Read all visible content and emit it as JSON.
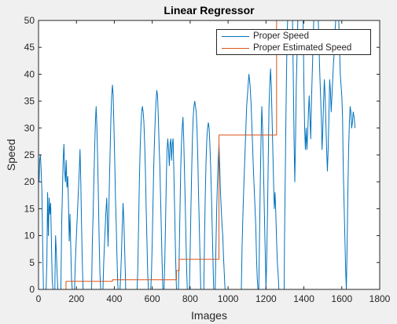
{
  "chart_data": {
    "type": "line",
    "title": "Linear Regressor",
    "xlabel": "Images",
    "ylabel": "Speed",
    "xlim": [
      0,
      1800
    ],
    "ylim": [
      0,
      50
    ],
    "x_ticks": [
      0,
      200,
      400,
      600,
      800,
      1000,
      1200,
      1400,
      1600,
      1800
    ],
    "y_ticks": [
      0,
      5,
      10,
      15,
      20,
      25,
      30,
      35,
      40,
      45,
      50
    ],
    "grid": false,
    "legend_position": "top-right",
    "series": [
      {
        "name": "Proper Speed",
        "color": "#0072bd",
        "points": [
          [
            0,
            22
          ],
          [
            3,
            20
          ],
          [
            6,
            24
          ],
          [
            10,
            25
          ],
          [
            14,
            22
          ],
          [
            18,
            18
          ],
          [
            22,
            8
          ],
          [
            26,
            0
          ],
          [
            40,
            0
          ],
          [
            44,
            5
          ],
          [
            48,
            18
          ],
          [
            52,
            10
          ],
          [
            56,
            17
          ],
          [
            60,
            14
          ],
          [
            64,
            16
          ],
          [
            68,
            9
          ],
          [
            72,
            2
          ],
          [
            76,
            0
          ],
          [
            86,
            0
          ],
          [
            90,
            10
          ],
          [
            94,
            7
          ],
          [
            98,
            3
          ],
          [
            102,
            0
          ],
          [
            118,
            0
          ],
          [
            122,
            12
          ],
          [
            126,
            18
          ],
          [
            130,
            24
          ],
          [
            134,
            27
          ],
          [
            138,
            22
          ],
          [
            142,
            20
          ],
          [
            146,
            24
          ],
          [
            150,
            19
          ],
          [
            154,
            21
          ],
          [
            158,
            16
          ],
          [
            162,
            9
          ],
          [
            166,
            14
          ],
          [
            170,
            8
          ],
          [
            174,
            2
          ],
          [
            178,
            0
          ],
          [
            190,
            0
          ],
          [
            194,
            5
          ],
          [
            200,
            10
          ],
          [
            205,
            14
          ],
          [
            210,
            18
          ],
          [
            215,
            22
          ],
          [
            219,
            26
          ],
          [
            223,
            20
          ],
          [
            227,
            12
          ],
          [
            231,
            5
          ],
          [
            235,
            0
          ],
          [
            280,
            0
          ],
          [
            284,
            9
          ],
          [
            288,
            14
          ],
          [
            292,
            20
          ],
          [
            296,
            26
          ],
          [
            300,
            31
          ],
          [
            304,
            34
          ],
          [
            308,
            30
          ],
          [
            312,
            24
          ],
          [
            316,
            17
          ],
          [
            320,
            9
          ],
          [
            324,
            3
          ],
          [
            328,
            0
          ],
          [
            340,
            0
          ],
          [
            344,
            5
          ],
          [
            350,
            10
          ],
          [
            355,
            14
          ],
          [
            360,
            17
          ],
          [
            364,
            12
          ],
          [
            367,
            8
          ],
          [
            370,
            13
          ],
          [
            374,
            20
          ],
          [
            378,
            26
          ],
          [
            382,
            32
          ],
          [
            386,
            36
          ],
          [
            390,
            38
          ],
          [
            394,
            36
          ],
          [
            398,
            30
          ],
          [
            402,
            24
          ],
          [
            406,
            17
          ],
          [
            410,
            12
          ],
          [
            414,
            6
          ],
          [
            418,
            1
          ],
          [
            420,
            0
          ],
          [
            430,
            0
          ],
          [
            434,
            3
          ],
          [
            438,
            7
          ],
          [
            442,
            12
          ],
          [
            446,
            16
          ],
          [
            450,
            13
          ],
          [
            454,
            8
          ],
          [
            458,
            3
          ],
          [
            460,
            0
          ],
          [
            520,
            0
          ],
          [
            524,
            4
          ],
          [
            528,
            12
          ],
          [
            532,
            20
          ],
          [
            536,
            26
          ],
          [
            540,
            30
          ],
          [
            544,
            33
          ],
          [
            548,
            34
          ],
          [
            552,
            33
          ],
          [
            556,
            31
          ],
          [
            560,
            27
          ],
          [
            564,
            22
          ],
          [
            568,
            15
          ],
          [
            572,
            9
          ],
          [
            576,
            3
          ],
          [
            580,
            0
          ],
          [
            592,
            0
          ],
          [
            596,
            3
          ],
          [
            600,
            9
          ],
          [
            604,
            16
          ],
          [
            608,
            23
          ],
          [
            612,
            28
          ],
          [
            616,
            32
          ],
          [
            620,
            35
          ],
          [
            624,
            37
          ],
          [
            628,
            36
          ],
          [
            632,
            32
          ],
          [
            636,
            27
          ],
          [
            640,
            23
          ],
          [
            644,
            17
          ],
          [
            648,
            11
          ],
          [
            652,
            5
          ],
          [
            656,
            0
          ],
          [
            662,
            0
          ],
          [
            666,
            5
          ],
          [
            670,
            12
          ],
          [
            674,
            20
          ],
          [
            678,
            26
          ],
          [
            682,
            28
          ],
          [
            686,
            26
          ],
          [
            690,
            23
          ],
          [
            694,
            27
          ],
          [
            698,
            28
          ],
          [
            702,
            24
          ],
          [
            706,
            27
          ],
          [
            710,
            28
          ],
          [
            714,
            22
          ],
          [
            718,
            15
          ],
          [
            722,
            8
          ],
          [
            726,
            2
          ],
          [
            728,
            0
          ],
          [
            738,
            0
          ],
          [
            742,
            6
          ],
          [
            746,
            14
          ],
          [
            750,
            22
          ],
          [
            754,
            27
          ],
          [
            758,
            30
          ],
          [
            762,
            32
          ],
          [
            766,
            28
          ],
          [
            770,
            22
          ],
          [
            774,
            16
          ],
          [
            778,
            9
          ],
          [
            782,
            3
          ],
          [
            785,
            0
          ],
          [
            796,
            0
          ],
          [
            800,
            7
          ],
          [
            804,
            15
          ],
          [
            808,
            22
          ],
          [
            812,
            28
          ],
          [
            816,
            32
          ],
          [
            820,
            34
          ],
          [
            824,
            35
          ],
          [
            828,
            34
          ],
          [
            832,
            33
          ],
          [
            836,
            30
          ],
          [
            840,
            25
          ],
          [
            844,
            18
          ],
          [
            848,
            12
          ],
          [
            852,
            6
          ],
          [
            856,
            0
          ],
          [
            872,
            0
          ],
          [
            876,
            10
          ],
          [
            880,
            18
          ],
          [
            884,
            24
          ],
          [
            888,
            28
          ],
          [
            892,
            30
          ],
          [
            896,
            31
          ],
          [
            900,
            30
          ],
          [
            904,
            27
          ],
          [
            908,
            23
          ],
          [
            912,
            18
          ],
          [
            916,
            12
          ],
          [
            920,
            6
          ],
          [
            924,
            0
          ],
          [
            932,
            0
          ],
          [
            936,
            8
          ],
          [
            940,
            15
          ],
          [
            944,
            20
          ],
          [
            948,
            24
          ],
          [
            952,
            27
          ],
          [
            956,
            23
          ],
          [
            960,
            18
          ],
          [
            964,
            15
          ],
          [
            968,
            12
          ],
          [
            972,
            10
          ],
          [
            976,
            6
          ],
          [
            980,
            3
          ],
          [
            984,
            0
          ],
          [
            1070,
            0
          ],
          [
            1074,
            8
          ],
          [
            1080,
            16
          ],
          [
            1086,
            22
          ],
          [
            1092,
            28
          ],
          [
            1098,
            34
          ],
          [
            1104,
            37
          ],
          [
            1110,
            40
          ],
          [
            1116,
            38
          ],
          [
            1122,
            34
          ],
          [
            1128,
            28
          ],
          [
            1134,
            22
          ],
          [
            1140,
            17
          ],
          [
            1146,
            12
          ],
          [
            1150,
            6
          ],
          [
            1154,
            2
          ],
          [
            1158,
            0
          ],
          [
            1162,
            0
          ],
          [
            1166,
            10
          ],
          [
            1170,
            20
          ],
          [
            1174,
            28
          ],
          [
            1178,
            34
          ],
          [
            1182,
            30
          ],
          [
            1186,
            24
          ],
          [
            1190,
            17
          ],
          [
            1194,
            10
          ],
          [
            1198,
            4
          ],
          [
            1200,
            0
          ],
          [
            1204,
            6
          ],
          [
            1208,
            14
          ],
          [
            1212,
            24
          ],
          [
            1216,
            34
          ],
          [
            1220,
            38
          ],
          [
            1224,
            41
          ],
          [
            1228,
            38
          ],
          [
            1232,
            32
          ],
          [
            1236,
            26
          ],
          [
            1240,
            20
          ],
          [
            1244,
            15
          ],
          [
            1248,
            18
          ],
          [
            1252,
            14
          ],
          [
            1256,
            9
          ],
          [
            1260,
            5
          ],
          [
            1264,
            3
          ],
          [
            1268,
            0
          ],
          [
            1296,
            0
          ],
          [
            1298,
            10
          ],
          [
            1302,
            22
          ],
          [
            1306,
            34
          ],
          [
            1310,
            44
          ],
          [
            1314,
            50
          ],
          [
            1340,
            50
          ],
          [
            1344,
            40
          ],
          [
            1348,
            28
          ],
          [
            1352,
            20
          ],
          [
            1356,
            28
          ],
          [
            1360,
            38
          ],
          [
            1364,
            44
          ],
          [
            1368,
            50
          ],
          [
            1396,
            50
          ],
          [
            1400,
            38
          ],
          [
            1404,
            30
          ],
          [
            1408,
            26
          ],
          [
            1412,
            30
          ],
          [
            1416,
            26
          ],
          [
            1420,
            29
          ],
          [
            1424,
            33
          ],
          [
            1428,
            36
          ],
          [
            1432,
            32
          ],
          [
            1436,
            28
          ],
          [
            1440,
            35
          ],
          [
            1444,
            40
          ],
          [
            1448,
            45
          ],
          [
            1452,
            50
          ],
          [
            1476,
            50
          ],
          [
            1480,
            45
          ],
          [
            1484,
            40
          ],
          [
            1488,
            36
          ],
          [
            1492,
            32
          ],
          [
            1496,
            26
          ],
          [
            1500,
            30
          ],
          [
            1504,
            35
          ],
          [
            1508,
            39
          ],
          [
            1512,
            36
          ],
          [
            1516,
            31
          ],
          [
            1520,
            26
          ],
          [
            1524,
            22
          ],
          [
            1528,
            26
          ],
          [
            1532,
            32
          ],
          [
            1536,
            39
          ],
          [
            1540,
            37
          ],
          [
            1544,
            33
          ],
          [
            1548,
            36
          ],
          [
            1552,
            39
          ],
          [
            1556,
            42
          ],
          [
            1560,
            44
          ],
          [
            1564,
            48
          ],
          [
            1568,
            50
          ],
          [
            1584,
            50
          ],
          [
            1588,
            45
          ],
          [
            1592,
            40
          ],
          [
            1596,
            38
          ],
          [
            1600,
            36
          ],
          [
            1604,
            32
          ],
          [
            1608,
            22
          ],
          [
            1612,
            16
          ],
          [
            1616,
            10
          ],
          [
            1620,
            4
          ],
          [
            1624,
            0
          ],
          [
            1628,
            8
          ],
          [
            1632,
            18
          ],
          [
            1636,
            26
          ],
          [
            1640,
            31
          ],
          [
            1644,
            34
          ],
          [
            1648,
            33
          ],
          [
            1652,
            30
          ],
          [
            1656,
            31
          ],
          [
            1660,
            33
          ],
          [
            1665,
            32
          ],
          [
            1670,
            30
          ]
        ]
      },
      {
        "name": "Proper Estimated Speed",
        "color": "#d95319",
        "points": [
          [
            0,
            0
          ],
          [
            145,
            0
          ],
          [
            145,
            1.5
          ],
          [
            390,
            1.5
          ],
          [
            390,
            1.8
          ],
          [
            728,
            1.8
          ],
          [
            728,
            3.5
          ],
          [
            742,
            3.5
          ],
          [
            742,
            5.6
          ],
          [
            952,
            5.6
          ],
          [
            952,
            28.7
          ],
          [
            1256,
            28.7
          ],
          [
            1256,
            50
          ],
          [
            1300,
            50
          ]
        ]
      }
    ]
  }
}
